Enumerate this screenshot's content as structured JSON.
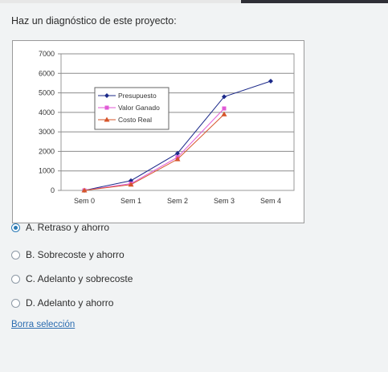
{
  "question": {
    "text": "Haz un diagnóstico de este proyecto:"
  },
  "chart_data": {
    "type": "line",
    "categories": [
      "Sem 0",
      "Sem 1",
      "Sem 2",
      "Sem 3",
      "Sem 4"
    ],
    "y_ticks": [
      "7000",
      "6000",
      "5000",
      "4000",
      "3000",
      "2000",
      "1000",
      "0"
    ],
    "ylim": [
      0,
      7000
    ],
    "grid": true,
    "legend_position": "top-left",
    "series": [
      {
        "name": "Presupuesto",
        "color": "#1c2a8a",
        "marker": "diamond",
        "values": [
          0,
          500,
          1900,
          4800,
          5600
        ]
      },
      {
        "name": "Valor Ganado",
        "color": "#e05ad6",
        "marker": "square",
        "values": [
          0,
          350,
          1700,
          4200,
          null
        ]
      },
      {
        "name": "Costo Real",
        "color": "#d6542a",
        "marker": "triangle",
        "values": [
          0,
          300,
          1600,
          3900,
          null
        ]
      }
    ]
  },
  "options": [
    {
      "label": "A. Retraso y ahorro",
      "selected": true
    },
    {
      "label": "B. Sobrecoste y ahorro",
      "selected": false
    },
    {
      "label": "C. Adelanto y sobrecoste",
      "selected": false
    },
    {
      "label": "D. Adelanto y ahorro",
      "selected": false
    }
  ],
  "clear_selection": {
    "label": "Borra selección"
  }
}
